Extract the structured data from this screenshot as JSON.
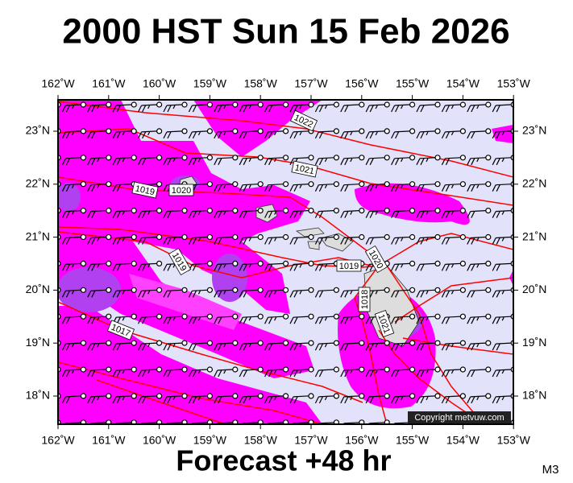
{
  "header": {
    "title": "2000 HST Sun 15 Feb 2026"
  },
  "map": {
    "top_lon_labels": [
      "162˚W",
      "161˚W",
      "160˚W",
      "159˚W",
      "158˚W",
      "157˚W",
      "156˚W",
      "155˚W",
      "154˚W",
      "153˚W"
    ],
    "bottom_lon_labels": [
      "162˚W",
      "161˚W",
      "160˚W",
      "159˚W",
      "158˚W",
      "157˚W",
      "156˚W",
      "155˚W",
      "154˚W",
      "153˚W"
    ],
    "left_lat_labels": [
      "23˚N",
      "22˚N",
      "21˚N",
      "20˚N",
      "19˚N",
      "18˚N"
    ],
    "right_lat_labels": [
      "23˚N",
      "22˚N",
      "21˚N",
      "20˚N",
      "19˚N",
      "18˚N"
    ],
    "isobar_labels": [
      "1022",
      "1021",
      "1019",
      "1020",
      "1019",
      "1019",
      "1020",
      "1018",
      "1021",
      "1017"
    ],
    "copyright": "Copyright metvuw.com"
  },
  "footer": {
    "forecast": "Forecast +48 hr",
    "model": "M3"
  }
}
